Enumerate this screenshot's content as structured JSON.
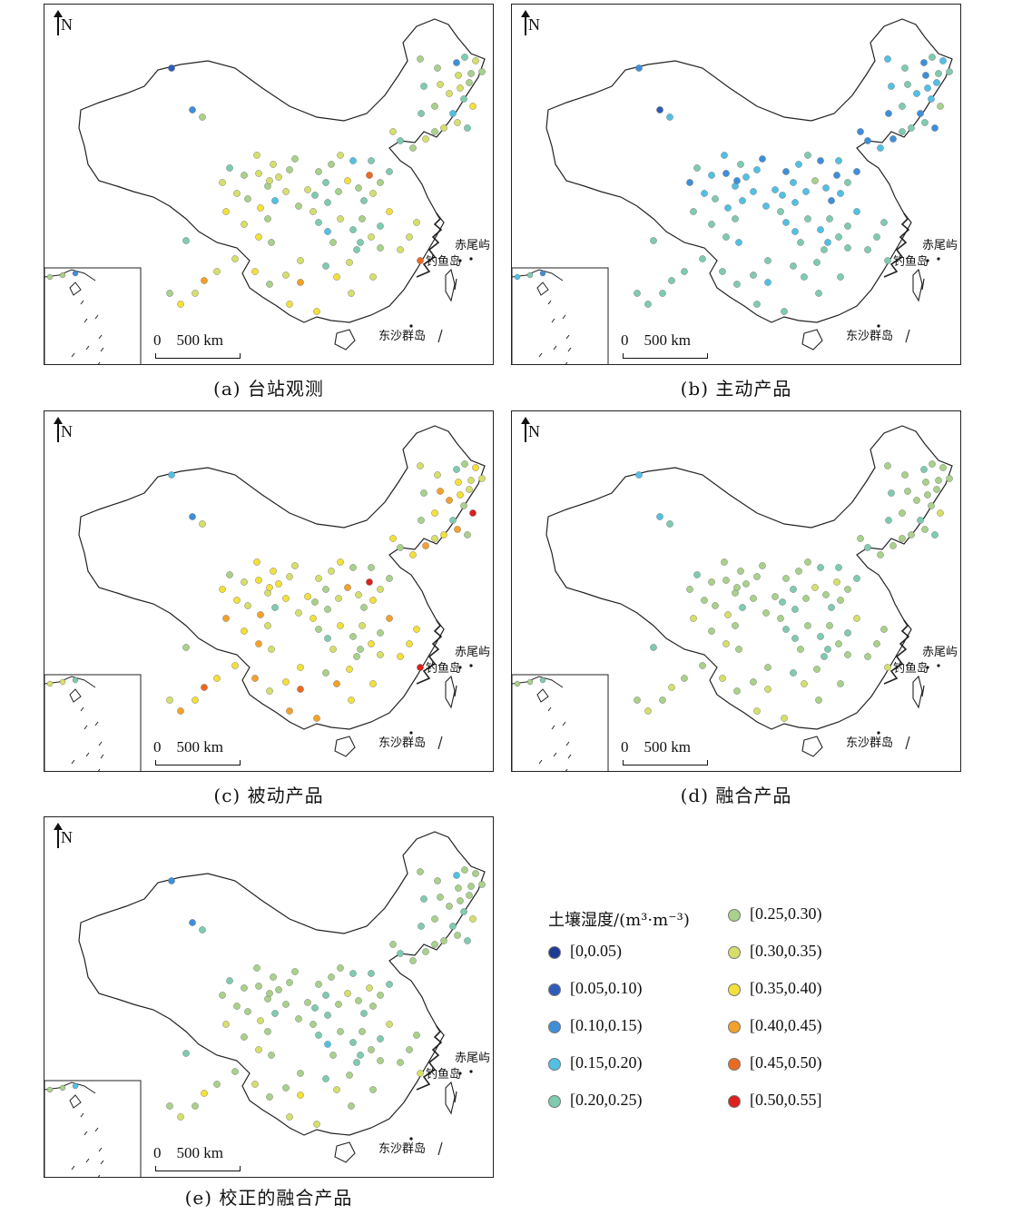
{
  "compass_label": "N",
  "scale_label": "0    500 km",
  "islands": {
    "chiwei": "赤尾屿",
    "diaoyu": "钓鱼岛",
    "dongsha": "东沙群岛"
  },
  "panels": [
    {
      "id": "a",
      "caption": "(a) 台站观测"
    },
    {
      "id": "b",
      "caption": "(b) 主动产品"
    },
    {
      "id": "c",
      "caption": "(c) 被动产品"
    },
    {
      "id": "d",
      "caption": "(d) 融合产品"
    },
    {
      "id": "e",
      "caption": "(e) 校正的融合产品"
    }
  ],
  "legend": {
    "title": "土壤湿度/(m³·m⁻³)",
    "classes": [
      {
        "label": "[0,0.05)",
        "color": "#1f3a93"
      },
      {
        "label": "[0.05,0.10)",
        "color": "#2e5cb8"
      },
      {
        "label": "[0.10,0.15)",
        "color": "#3f8ed8"
      },
      {
        "label": "[0.15,0.20)",
        "color": "#52c0e3"
      },
      {
        "label": "[0.20,0.25)",
        "color": "#7fcbb0"
      },
      {
        "label": "[0.25,0.30)",
        "color": "#a9d18a"
      },
      {
        "label": "[0.30,0.35)",
        "color": "#d6df6a"
      },
      {
        "label": "[0.35,0.40)",
        "color": "#f3e03a"
      },
      {
        "label": "[0.40,0.45)",
        "color": "#f2a12a"
      },
      {
        "label": "[0.45,0.50)",
        "color": "#ea6a23"
      },
      {
        "label": "[0.50,0.55]",
        "color": "#dc1f1f"
      }
    ]
  },
  "station_classes": {
    "a": [
      5,
      5,
      2,
      4,
      6,
      6,
      5,
      5,
      4,
      4,
      3,
      6,
      6,
      7,
      4,
      5,
      6,
      5,
      4,
      6,
      6,
      6,
      6,
      5,
      5,
      4,
      2,
      1,
      5,
      9,
      3,
      6,
      5,
      5,
      4,
      4,
      4,
      5,
      7,
      5,
      4,
      6,
      5,
      4,
      4,
      6,
      5,
      6,
      5,
      6,
      5,
      4,
      6,
      6,
      5,
      7,
      3,
      6,
      5,
      6,
      6,
      6,
      6,
      5,
      7,
      4,
      5,
      4,
      6,
      3,
      4,
      5,
      4,
      6,
      5,
      7,
      5,
      7,
      8,
      7,
      6,
      6,
      5,
      9,
      6,
      6,
      6,
      4,
      7,
      6,
      7,
      5,
      6,
      6,
      4,
      7,
      6,
      4,
      6,
      6,
      8,
      6,
      7,
      5,
      5
    ],
    "b": [
      3,
      4,
      2,
      4,
      3,
      2,
      4,
      4,
      3,
      3,
      2,
      4,
      4,
      5,
      2,
      4,
      2,
      3,
      2,
      2,
      4,
      3,
      3,
      3,
      4,
      2,
      1,
      2,
      3,
      2,
      2,
      4,
      3,
      2,
      3,
      3,
      3,
      3,
      5,
      3,
      2,
      3,
      4,
      2,
      3,
      3,
      3,
      3,
      3,
      2,
      3,
      4,
      2,
      3,
      4,
      3,
      3,
      3,
      3,
      4,
      2,
      4,
      3,
      2,
      3,
      4,
      4,
      3,
      4,
      3,
      3,
      4,
      3,
      4,
      3,
      4,
      4,
      4,
      3,
      4,
      4,
      4,
      4,
      4,
      4,
      4,
      4,
      4,
      4,
      4,
      4,
      4,
      4,
      4,
      4,
      4,
      4,
      4,
      4,
      4,
      4,
      4,
      4,
      4,
      4
    ],
    "c": [
      6,
      6,
      4,
      5,
      7,
      7,
      6,
      6,
      5,
      5,
      4,
      7,
      8,
      10,
      5,
      6,
      8,
      7,
      5,
      7,
      8,
      8,
      7,
      6,
      7,
      5,
      2,
      3,
      6,
      10,
      5,
      7,
      6,
      6,
      5,
      5,
      5,
      6,
      8,
      6,
      5,
      7,
      6,
      5,
      5,
      7,
      6,
      7,
      6,
      7,
      6,
      5,
      7,
      7,
      6,
      8,
      4,
      7,
      6,
      7,
      7,
      7,
      7,
      6,
      8,
      5,
      6,
      5,
      7,
      4,
      5,
      6,
      5,
      7,
      6,
      8,
      6,
      8,
      9,
      8,
      7,
      7,
      6,
      10,
      7,
      7,
      7,
      5,
      8,
      7,
      8,
      6,
      7,
      7,
      5,
      8,
      7,
      5,
      7,
      7,
      9,
      7,
      8,
      6,
      6
    ],
    "d": [
      5,
      5,
      4,
      5,
      5,
      5,
      5,
      5,
      4,
      5,
      4,
      5,
      5,
      6,
      4,
      5,
      5,
      5,
      4,
      5,
      5,
      5,
      5,
      5,
      5,
      4,
      3,
      3,
      4,
      6,
      4,
      5,
      5,
      5,
      4,
      4,
      4,
      5,
      6,
      5,
      4,
      5,
      5,
      4,
      4,
      5,
      5,
      5,
      5,
      5,
      5,
      4,
      5,
      5,
      5,
      6,
      4,
      5,
      5,
      5,
      5,
      5,
      5,
      5,
      6,
      4,
      5,
      4,
      5,
      4,
      4,
      5,
      4,
      5,
      5,
      6,
      5,
      6,
      6,
      6,
      5,
      5,
      5,
      6,
      5,
      5,
      5,
      4,
      6,
      5,
      6,
      5,
      5,
      5,
      4,
      6,
      5,
      4,
      5,
      5,
      6,
      5,
      6,
      5,
      5
    ],
    "e": [
      5,
      5,
      3,
      5,
      5,
      5,
      5,
      5,
      4,
      4,
      4,
      5,
      5,
      6,
      4,
      5,
      5,
      5,
      4,
      5,
      5,
      5,
      5,
      5,
      5,
      4,
      2,
      2,
      4,
      6,
      4,
      5,
      5,
      5,
      4,
      4,
      4,
      5,
      6,
      5,
      4,
      5,
      5,
      4,
      4,
      5,
      5,
      5,
      5,
      5,
      5,
      4,
      5,
      5,
      5,
      6,
      4,
      5,
      5,
      5,
      5,
      5,
      5,
      5,
      6,
      4,
      5,
      4,
      5,
      3,
      4,
      5,
      4,
      5,
      5,
      6,
      5,
      6,
      7,
      6,
      5,
      5,
      5,
      6,
      5,
      5,
      5,
      4,
      6,
      5,
      6,
      5,
      5,
      5,
      4,
      6,
      5,
      4,
      5,
      5,
      7,
      5,
      6,
      5,
      5
    ]
  }
}
